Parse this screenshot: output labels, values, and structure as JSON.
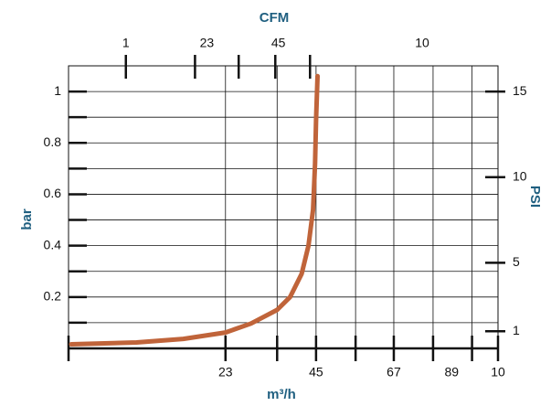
{
  "chart_data": {
    "type": "line",
    "x_title": "m³/h",
    "x2_title": "CFM",
    "y_title": "bar",
    "y2_title": "PSI",
    "xscale": "log",
    "xlim": [
      1,
      10
    ],
    "xticks": [
      {
        "value": 2.32,
        "label": "23"
      },
      {
        "value": 3.77,
        "label": "45"
      },
      {
        "value": 5.72,
        "label": "67"
      },
      {
        "value": 7.8,
        "label": "89"
      },
      {
        "value": 10,
        "label": "10"
      }
    ],
    "xgrid": [
      2.32,
      3.06,
      3.77,
      4.66,
      5.72,
      7.06,
      8.7,
      10
    ],
    "x2lim": [
      1,
      10
    ],
    "x2ticks": [
      {
        "value": 1.36,
        "label": "1"
      },
      {
        "value": 2.1,
        "label": "23"
      },
      {
        "value": 3.08,
        "label": "45"
      },
      {
        "value": 6.66,
        "label": "10"
      }
    ],
    "x2marks": [
      1.36,
      1.97,
      2.49,
      3.03,
      3.65
    ],
    "ylim": [
      0,
      1.1
    ],
    "yticks": [
      0.2,
      0.4,
      0.6,
      0.8,
      1
    ],
    "ygrid": [
      0.1,
      0.2,
      0.3,
      0.4,
      0.5,
      0.6,
      0.7,
      0.8,
      0.9,
      1
    ],
    "y2lim": [
      0,
      16.5
    ],
    "y2ticks": [
      1,
      5,
      10,
      15
    ],
    "grid": true,
    "x": [
      1.015,
      1.44,
      1.85,
      2.32,
      2.66,
      3.06,
      3.28,
      3.49,
      3.62,
      3.71,
      3.75,
      3.77,
      3.8
    ],
    "series": [
      {
        "name": "bar",
        "color": "#c0643a",
        "values": [
          0.016,
          0.023,
          0.037,
          0.062,
          0.097,
          0.15,
          0.2,
          0.29,
          0.4,
          0.54,
          0.72,
          0.89,
          1.06
        ]
      }
    ]
  }
}
